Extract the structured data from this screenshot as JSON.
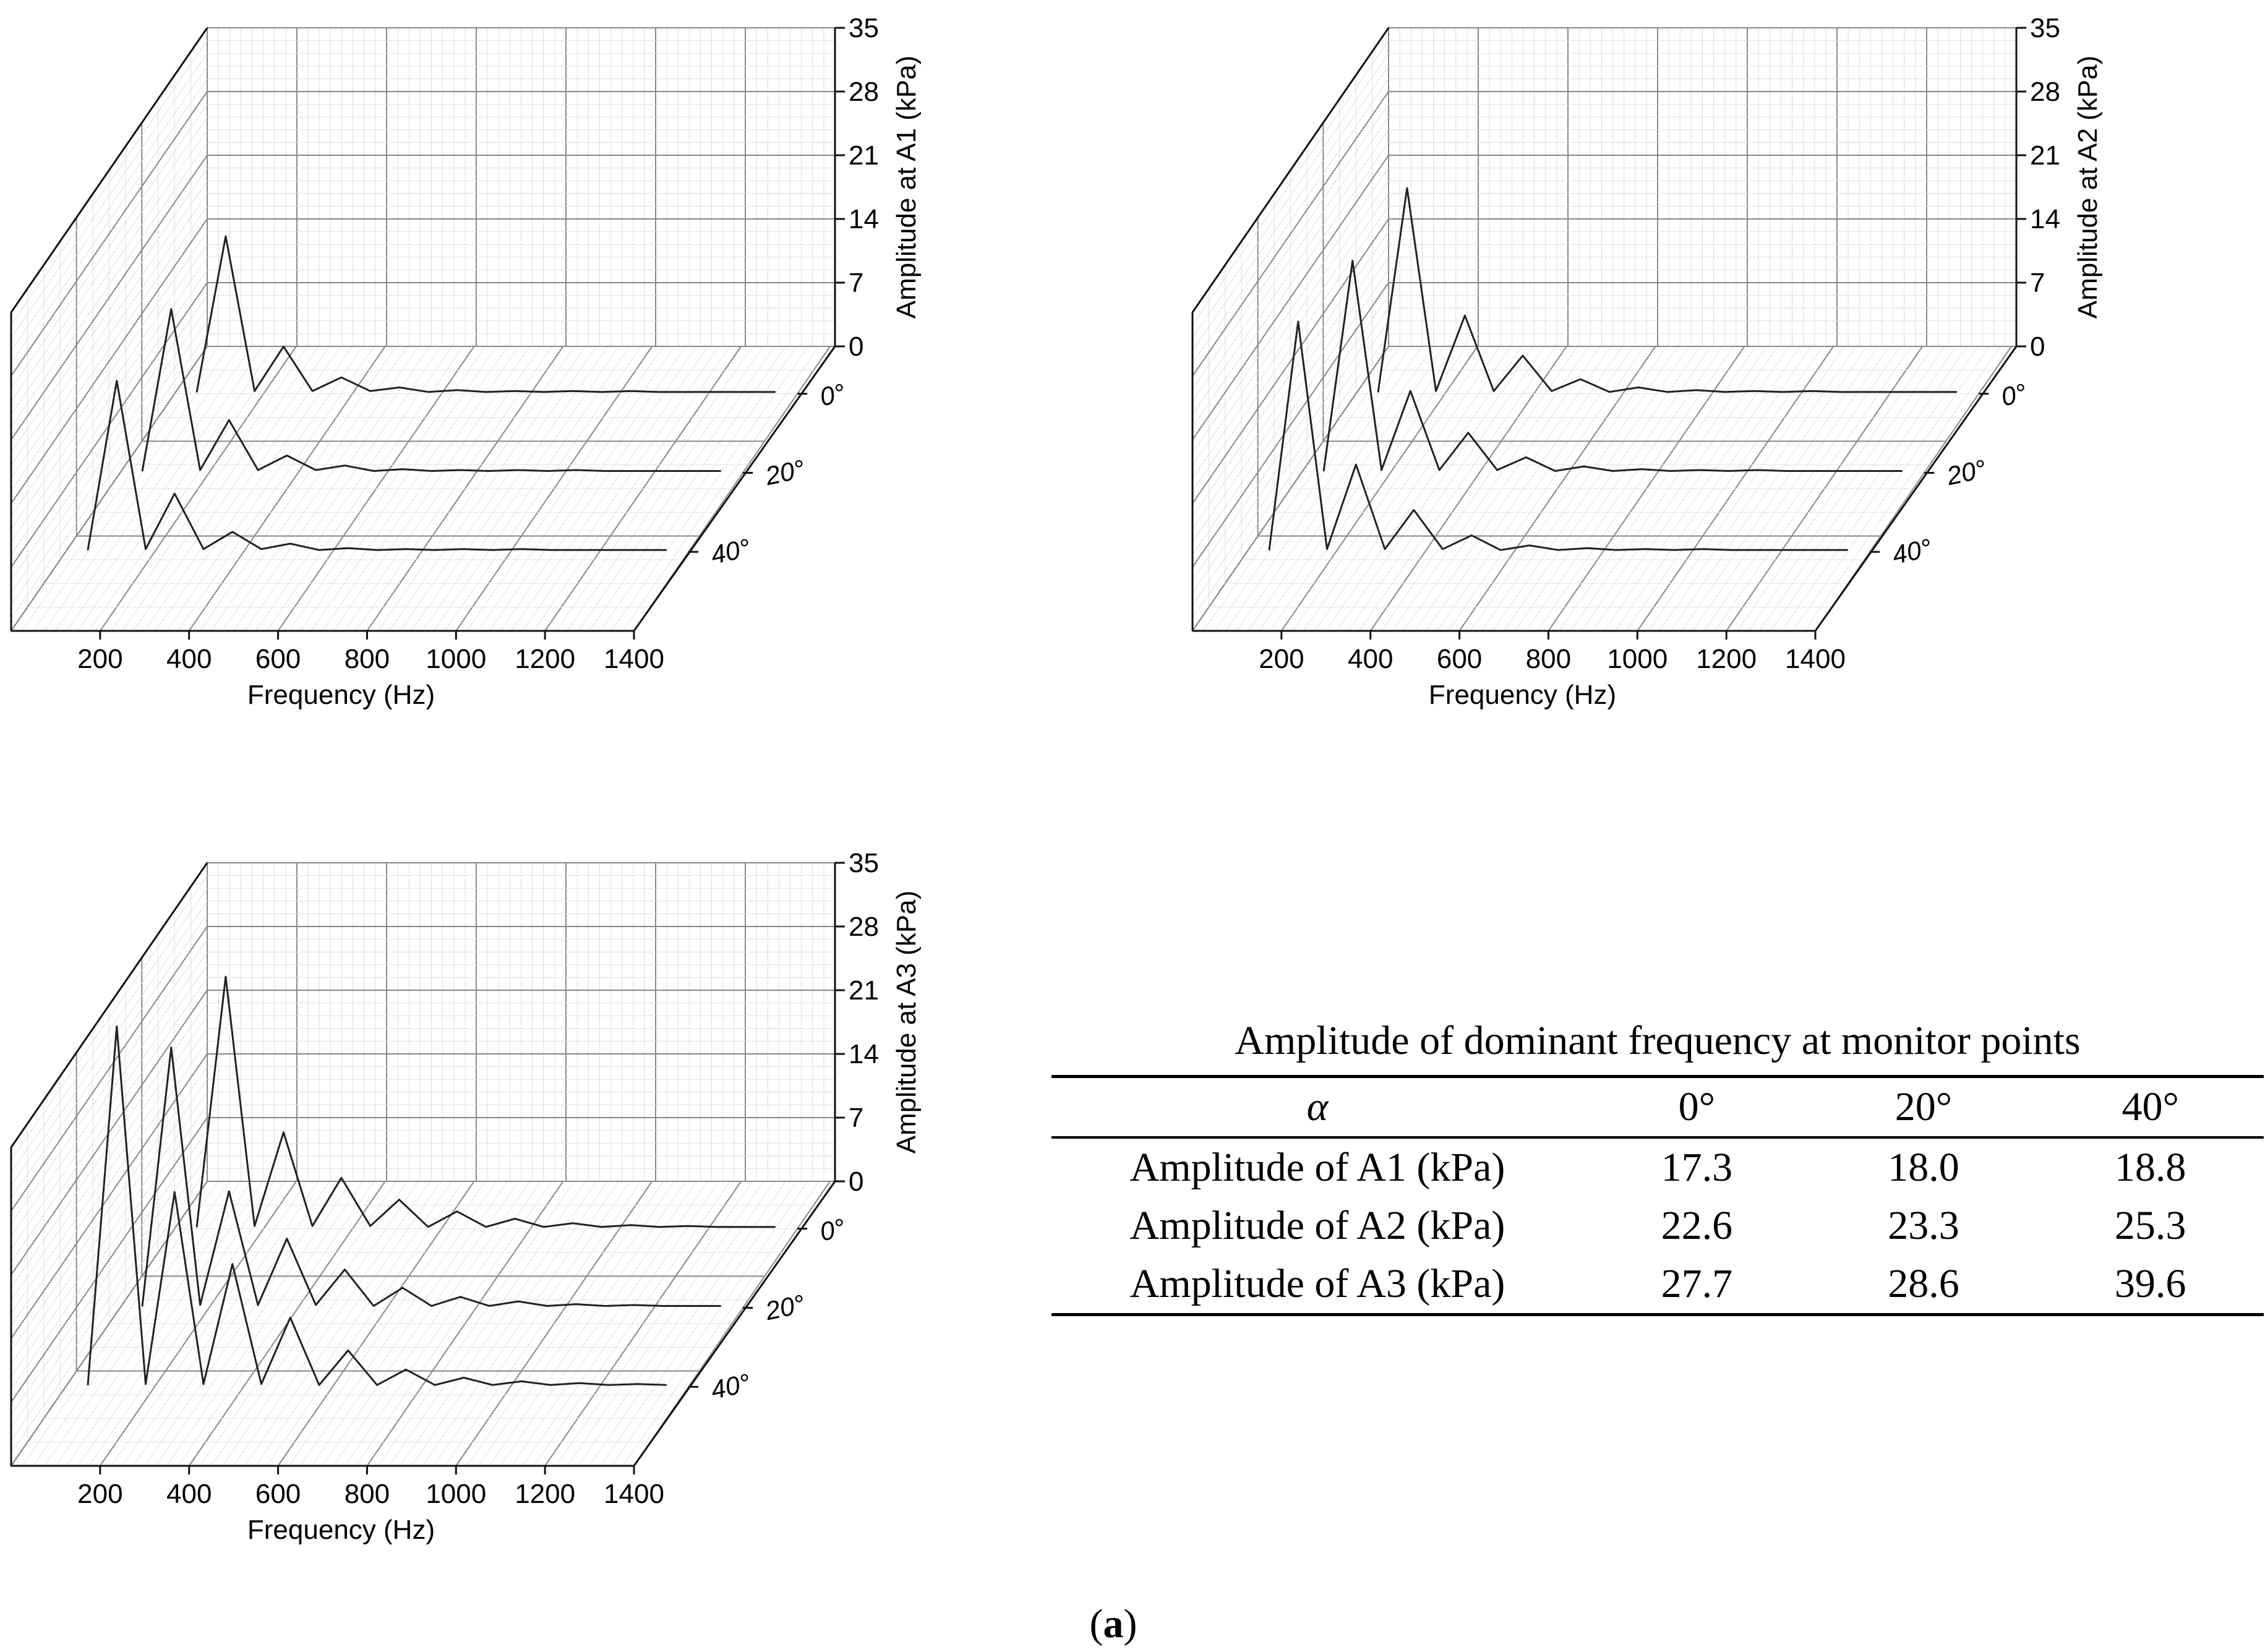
{
  "chart_data": [
    {
      "type": "line",
      "ylabel": "Amplitude at A1 (kPa)",
      "xlabel": "Frequency (Hz)",
      "x_ticks": [
        "200",
        "400",
        "600",
        "800",
        "1000",
        "1200",
        "1400"
      ],
      "y_ticks": [
        "0",
        "7",
        "14",
        "21",
        "28",
        "35"
      ],
      "ylim": [
        0,
        35
      ],
      "xlim": [
        0,
        1400
      ],
      "series": [
        {
          "name": "0°",
          "x": [
            50,
            115,
            180,
            245,
            310,
            375,
            440,
            505,
            570,
            635,
            700,
            765,
            830,
            895,
            960,
            1025,
            1090,
            1155,
            1220,
            1285,
            1350
          ],
          "values": [
            0.2,
            17.3,
            0.3,
            5.2,
            0.3,
            1.8,
            0.3,
            0.7,
            0.2,
            0.4,
            0.2,
            0.3,
            0.2,
            0.3,
            0.2,
            0.3,
            0.2,
            0.2,
            0.2,
            0.2,
            0.2
          ]
        },
        {
          "name": "20°",
          "x": [
            50,
            115,
            180,
            245,
            310,
            375,
            440,
            505,
            570,
            635,
            700,
            765,
            830,
            895,
            960,
            1025,
            1090,
            1155,
            1220,
            1285,
            1350
          ],
          "values": [
            0.2,
            18.0,
            0.3,
            5.8,
            0.3,
            1.9,
            0.3,
            0.8,
            0.2,
            0.4,
            0.2,
            0.3,
            0.2,
            0.3,
            0.2,
            0.3,
            0.2,
            0.2,
            0.2,
            0.2,
            0.2
          ]
        },
        {
          "name": "40°",
          "x": [
            50,
            115,
            180,
            245,
            310,
            375,
            440,
            505,
            570,
            635,
            700,
            765,
            830,
            895,
            960,
            1025,
            1090,
            1155,
            1220,
            1285,
            1350
          ],
          "values": [
            0.2,
            18.8,
            0.3,
            6.4,
            0.3,
            2.2,
            0.3,
            0.9,
            0.2,
            0.4,
            0.2,
            0.3,
            0.2,
            0.3,
            0.2,
            0.3,
            0.2,
            0.2,
            0.2,
            0.2,
            0.2
          ]
        }
      ]
    },
    {
      "type": "line",
      "ylabel": "Amplitude at A2 (kPa)",
      "xlabel": "Frequency (Hz)",
      "x_ticks": [
        "200",
        "400",
        "600",
        "800",
        "1000",
        "1200",
        "1400"
      ],
      "y_ticks": [
        "0",
        "7",
        "14",
        "21",
        "28",
        "35"
      ],
      "ylim": [
        0,
        35
      ],
      "xlim": [
        0,
        1400
      ],
      "series": [
        {
          "name": "0°",
          "x": [
            50,
            115,
            180,
            245,
            310,
            375,
            440,
            505,
            570,
            635,
            700,
            765,
            830,
            895,
            960,
            1025,
            1090,
            1155,
            1220,
            1285,
            1350
          ],
          "values": [
            0.2,
            22.6,
            0.3,
            8.6,
            0.3,
            4.2,
            0.3,
            1.6,
            0.2,
            0.7,
            0.2,
            0.4,
            0.2,
            0.3,
            0.2,
            0.3,
            0.2,
            0.2,
            0.2,
            0.2,
            0.2
          ]
        },
        {
          "name": "20°",
          "x": [
            50,
            115,
            180,
            245,
            310,
            375,
            440,
            505,
            570,
            635,
            700,
            765,
            830,
            895,
            960,
            1025,
            1090,
            1155,
            1220,
            1285,
            1350
          ],
          "values": [
            0.2,
            23.3,
            0.3,
            9.0,
            0.3,
            4.4,
            0.3,
            1.7,
            0.2,
            0.7,
            0.2,
            0.4,
            0.2,
            0.3,
            0.2,
            0.3,
            0.2,
            0.2,
            0.2,
            0.2,
            0.2
          ]
        },
        {
          "name": "40°",
          "x": [
            50,
            115,
            180,
            245,
            310,
            375,
            440,
            505,
            570,
            635,
            700,
            765,
            830,
            895,
            960,
            1025,
            1090,
            1155,
            1220,
            1285,
            1350
          ],
          "values": [
            0.2,
            25.3,
            0.3,
            9.6,
            0.3,
            4.6,
            0.3,
            1.8,
            0.2,
            0.7,
            0.2,
            0.4,
            0.2,
            0.3,
            0.2,
            0.3,
            0.2,
            0.2,
            0.2,
            0.2,
            0.2
          ]
        }
      ]
    },
    {
      "type": "line",
      "ylabel": "Amplitude at A3 (kPa)",
      "xlabel": "Frequency (Hz)",
      "x_ticks": [
        "200",
        "400",
        "600",
        "800",
        "1000",
        "1200",
        "1400"
      ],
      "y_ticks": [
        "0",
        "7",
        "14",
        "21",
        "28",
        "35"
      ],
      "ylim": [
        0,
        35
      ],
      "xlim": [
        0,
        1400
      ],
      "series": [
        {
          "name": "0°",
          "x": [
            50,
            115,
            180,
            245,
            310,
            375,
            440,
            505,
            570,
            635,
            700,
            765,
            830,
            895,
            960,
            1025,
            1090,
            1155,
            1220,
            1285,
            1350
          ],
          "values": [
            0.2,
            27.7,
            0.3,
            10.6,
            0.3,
            5.6,
            0.3,
            3.2,
            0.2,
            1.9,
            0.2,
            1.1,
            0.2,
            0.6,
            0.2,
            0.4,
            0.2,
            0.3,
            0.2,
            0.2,
            0.2
          ]
        },
        {
          "name": "20°",
          "x": [
            50,
            115,
            180,
            245,
            310,
            375,
            440,
            505,
            570,
            635,
            700,
            765,
            830,
            895,
            960,
            1025,
            1090,
            1155,
            1220,
            1285,
            1350
          ],
          "values": [
            0.2,
            28.6,
            0.3,
            12.8,
            0.3,
            7.6,
            0.3,
            4.2,
            0.2,
            2.2,
            0.2,
            1.2,
            0.2,
            0.7,
            0.2,
            0.4,
            0.2,
            0.3,
            0.2,
            0.2,
            0.2
          ]
        },
        {
          "name": "40°",
          "x": [
            50,
            115,
            180,
            245,
            310,
            375,
            440,
            505,
            570,
            635,
            700,
            765,
            830,
            895,
            960,
            1025,
            1090,
            1155,
            1220,
            1285,
            1350
          ],
          "values": [
            0.2,
            39.6,
            0.3,
            21.4,
            0.3,
            13.5,
            0.3,
            7.6,
            0.2,
            4.0,
            0.2,
            1.9,
            0.2,
            1.0,
            0.2,
            0.6,
            0.2,
            0.4,
            0.2,
            0.3,
            0.2
          ]
        }
      ]
    },
    {
      "type": "table",
      "title": "Amplitude of dominant frequency at monitor points",
      "header": [
        "α",
        "0°",
        "20°",
        "40°"
      ],
      "rows": [
        [
          "Amplitude of A1 (kPa)",
          "17.3",
          "18.0",
          "18.8"
        ],
        [
          "Amplitude of A2 (kPa)",
          "22.6",
          "23.3",
          "25.3"
        ],
        [
          "Amplitude of A3 (kPa)",
          "27.7",
          "28.6",
          "39.6"
        ]
      ]
    }
  ],
  "caption": {
    "open": "(",
    "letter": "a",
    "close": ")"
  }
}
